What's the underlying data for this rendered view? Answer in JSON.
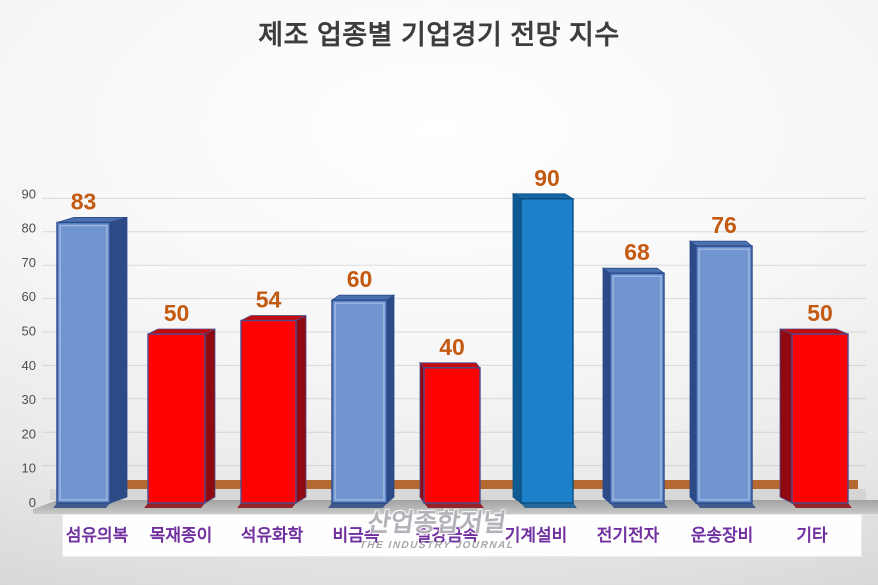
{
  "title": "제조 업종별 기업경기 전망 지수",
  "watermark": {
    "brand": "산업종합저널",
    "tagline": "THE INDUSTRY JOURNAL"
  },
  "chart_data": {
    "type": "bar",
    "title": "제조 업종별 기업경기 전망 지수",
    "categories": [
      "섬유의복",
      "목재종이",
      "석유화학",
      "비금속",
      "철강금속",
      "기계설비",
      "전기전자",
      "운송장비",
      "기타"
    ],
    "values": [
      83,
      50,
      54,
      60,
      40,
      90,
      68,
      76,
      50
    ],
    "bar_styles": [
      "blue",
      "red",
      "red",
      "blue",
      "red",
      "bright_blue",
      "blue",
      "blue",
      "red"
    ],
    "yticks": [
      0,
      10,
      20,
      30,
      40,
      50,
      60,
      70,
      80,
      90
    ],
    "ylim": [
      0,
      90
    ],
    "xlabel": "",
    "ylabel": "",
    "grid": true,
    "legend": "none",
    "effect": "3d-column",
    "value_label_color": "#c45a11",
    "category_label_color": "#7030a0",
    "axis_label_color": "#4d4d4d"
  },
  "colors": {
    "blue_front": "#6189cb",
    "blue_side": "#2c4a85",
    "blue_top": "#4a70ae",
    "blue_stroke": "#2a4a8a",
    "bright_blue_front": "#1c80ca",
    "bright_blue_side": "#0e5a92",
    "bright_blue_top": "#1568a5",
    "bright_blue_stroke": "#0c4f80",
    "red_front": "#fd0202",
    "red_side": "#8f0a10",
    "red_top": "#c40b0b",
    "red_stroke": "#4b4b8f",
    "floor_orange": "#b05a1d",
    "floor_gray_dark": "#a2a2a2",
    "floor_gray_light": "#c9c9c9",
    "gridline": "#ababab"
  }
}
